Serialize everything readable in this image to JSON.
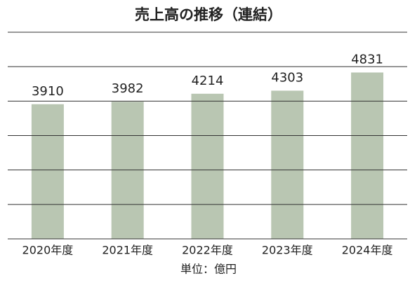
{
  "chart_data": {
    "type": "bar",
    "title": "売上高の推移（連結）",
    "categories": [
      "2020年度",
      "2021年度",
      "2022年度",
      "2023年度",
      "2024年度"
    ],
    "values": [
      3910,
      3982,
      4214,
      4303,
      4831
    ],
    "color": "#b9c6b2",
    "ylim": [
      0,
      6000
    ],
    "yticks": [
      0,
      1000,
      2000,
      3000,
      4000,
      5000,
      6000
    ],
    "grid": true,
    "unit_label": "単位：億円"
  }
}
